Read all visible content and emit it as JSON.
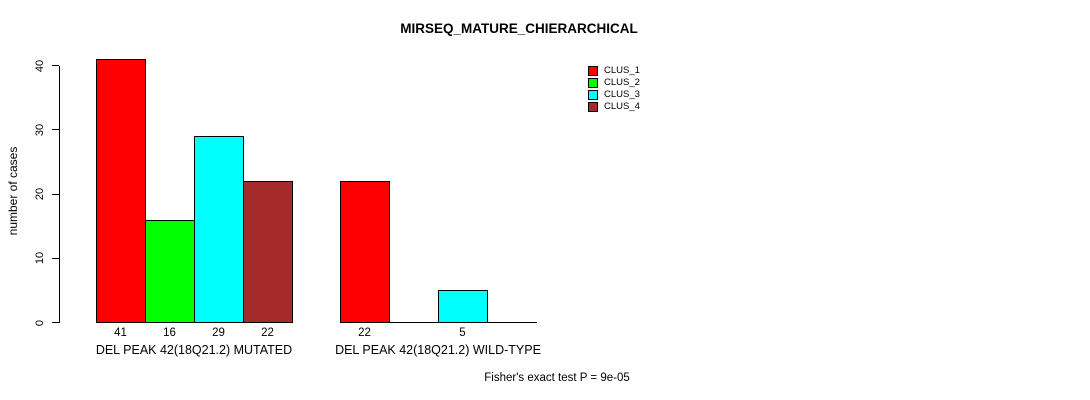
{
  "chart_data": {
    "type": "bar",
    "title": "MIRSEQ_MATURE_CHIERARCHICAL",
    "ylabel": "number of cases",
    "xlabel": "",
    "ylim": [
      0,
      41
    ],
    "yticks": [
      0,
      10,
      20,
      30,
      40
    ],
    "grid": false,
    "legend_position": "top-right-inside",
    "series": [
      {
        "name": "CLUS_1",
        "color": "#FF0000"
      },
      {
        "name": "CLUS_2",
        "color": "#00FF00"
      },
      {
        "name": "CLUS_3",
        "color": "#00FFFF"
      },
      {
        "name": "CLUS_4",
        "color": "#A52A2A"
      }
    ],
    "categories": [
      "DEL PEAK 42(18Q21.2) MUTATED",
      "DEL PEAK 42(18Q21.2) WILD-TYPE"
    ],
    "groups": [
      {
        "label": "DEL PEAK 42(18Q21.2) MUTATED",
        "values": [
          41,
          16,
          29,
          22
        ],
        "bar_labels": [
          "41",
          "16",
          "29",
          "22"
        ]
      },
      {
        "label": "DEL PEAK 42(18Q21.2) WILD-TYPE",
        "values": [
          22,
          0,
          5,
          0
        ],
        "bar_labels": [
          "22",
          "",
          "5",
          ""
        ]
      }
    ],
    "annotation": "Fisher's exact test P = 9e-05"
  }
}
